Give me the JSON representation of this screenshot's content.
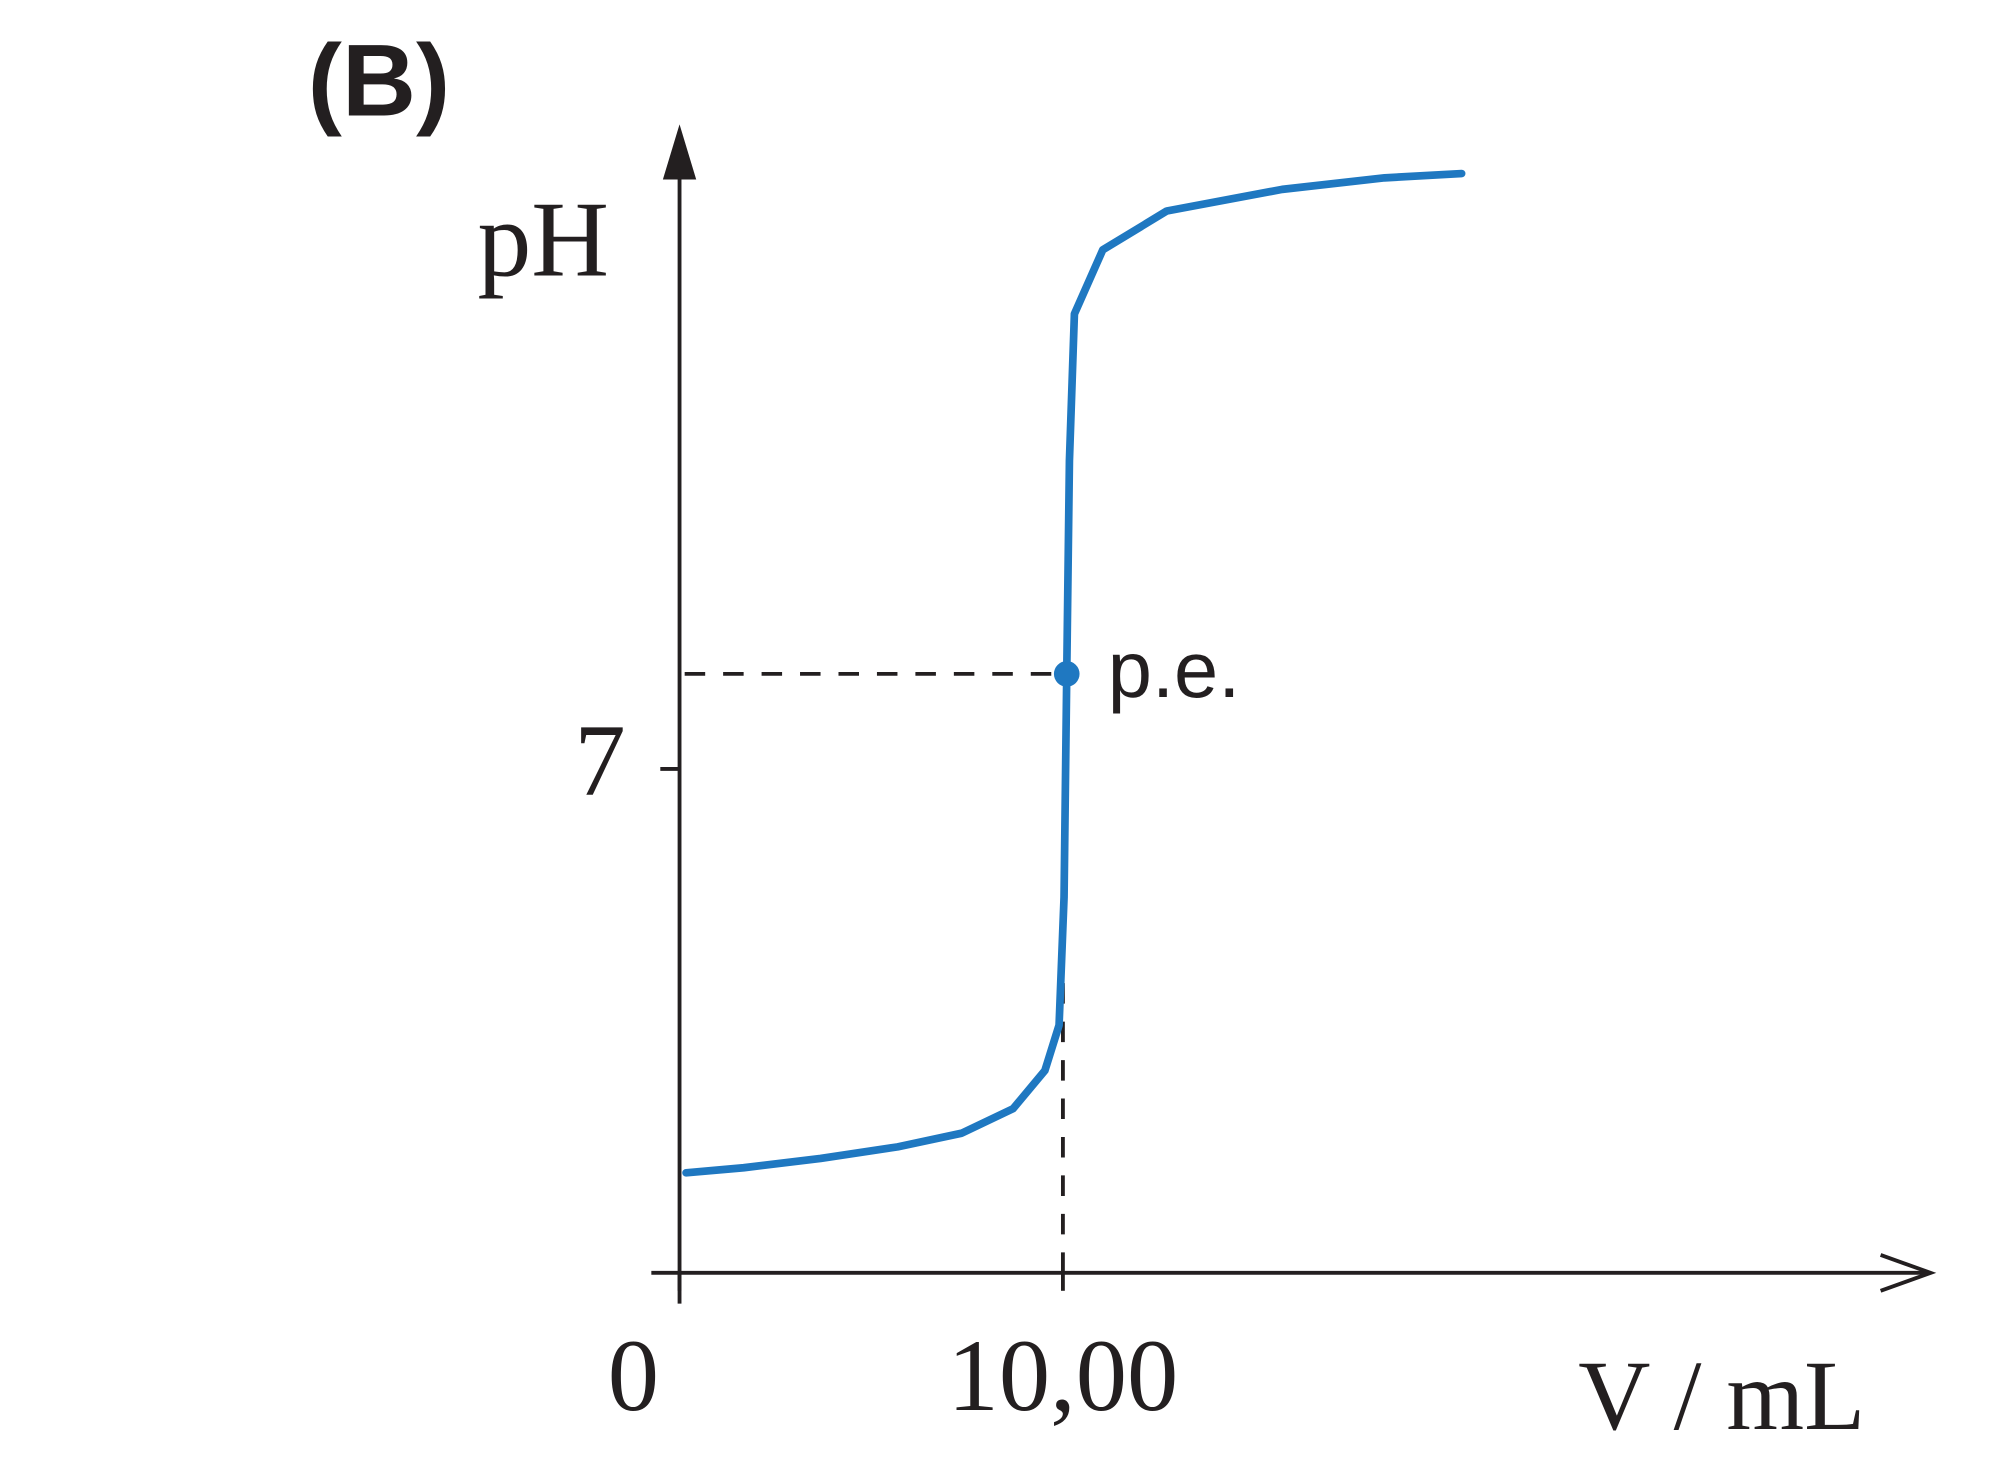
{
  "chart_data": {
    "type": "line",
    "panel_label": "(B)",
    "y_label": "pH",
    "x_label": "V / mL",
    "x": [
      0.17,
      1.67,
      3.68,
      5.69,
      7.36,
      8.7,
      9.53,
      9.9,
      10.03,
      10.1,
      10.17,
      10.3,
      11.04,
      12.71,
      15.72,
      18.39,
      20.4
    ],
    "series": [
      {
        "color": "#1f78c1",
        "values": [
          1.39,
          1.46,
          1.59,
          1.75,
          1.94,
          2.28,
          2.81,
          3.44,
          5.22,
          8.32,
          11.28,
          13.32,
          14.21,
          14.75,
          15.05,
          15.21,
          15.27
        ]
      }
    ],
    "xlim": [
      0,
      32.5
    ],
    "ylim": [
      0,
      15.9
    ],
    "xticks": [
      0,
      {
        "value": 10,
        "label": "10,00"
      }
    ],
    "yticks": [
      7
    ],
    "annotation": {
      "text": "p.e.",
      "x": 10.1,
      "y": 8.32
    }
  }
}
